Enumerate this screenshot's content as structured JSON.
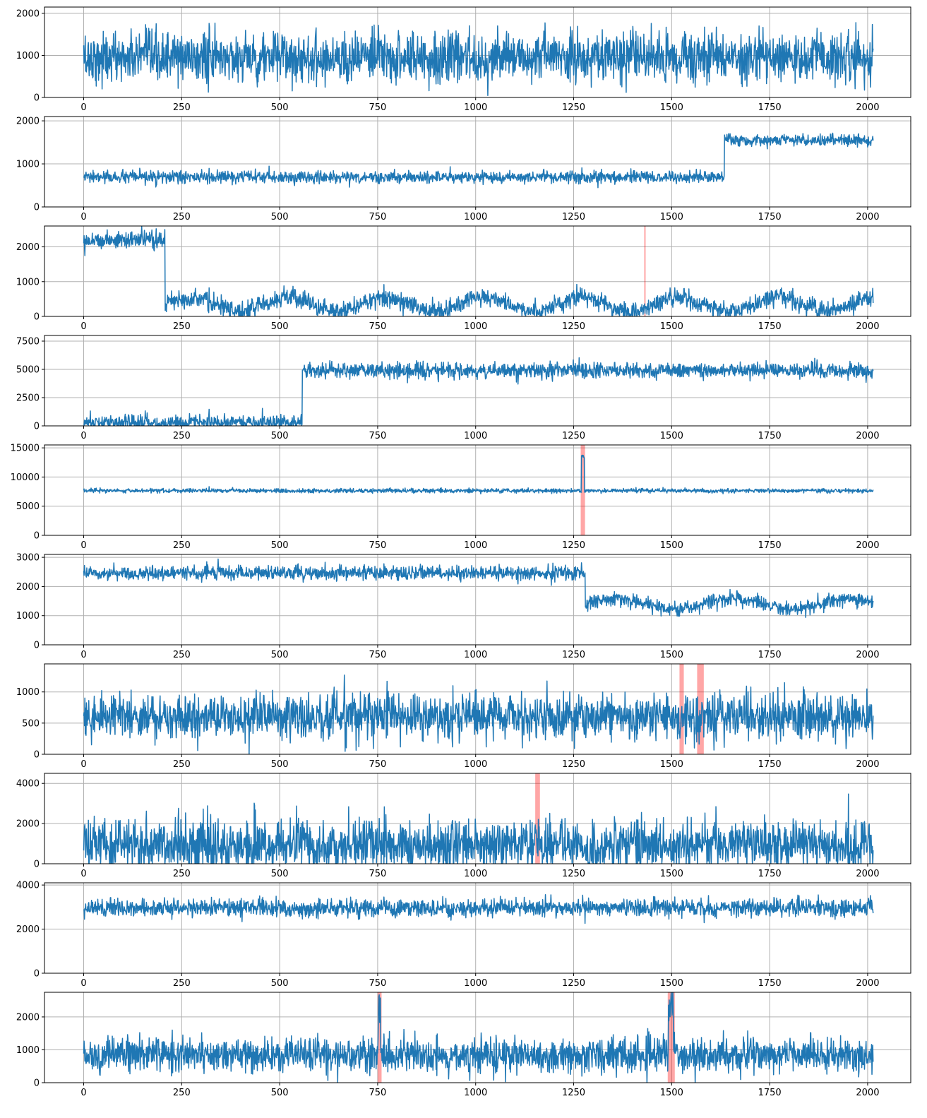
{
  "colors": {
    "series": "#1f77b4",
    "highlight": "#ff0000",
    "grid": "#b0b0b0"
  },
  "chart_data": [
    {
      "type": "line",
      "xlim": [
        -100,
        2110
      ],
      "ylim": [
        0,
        2150
      ],
      "xticks": [
        0,
        250,
        500,
        750,
        1000,
        1250,
        1500,
        1750,
        2000
      ],
      "yticks": [
        0,
        1000,
        2000
      ],
      "highlights": [],
      "series": [
        {
          "n": 2015,
          "mean": 950,
          "noise": 300,
          "segments": []
        }
      ],
      "grid": true
    },
    {
      "type": "line",
      "xlim": [
        -100,
        2110
      ],
      "ylim": [
        0,
        2100
      ],
      "xticks": [
        0,
        250,
        500,
        750,
        1000,
        1250,
        1500,
        1750,
        2000
      ],
      "yticks": [
        0,
        1000,
        2000
      ],
      "highlights": [],
      "series": [
        {
          "n": 2015,
          "noise": 70,
          "segments": [
            [
              0,
              1635,
              690
            ],
            [
              1635,
              2015,
              1550
            ]
          ]
        }
      ],
      "grid": true
    },
    {
      "type": "line",
      "xlim": [
        -100,
        2110
      ],
      "ylim": [
        0,
        2600
      ],
      "xticks": [
        0,
        250,
        500,
        750,
        1000,
        1250,
        1500,
        1750,
        2000
      ],
      "yticks": [
        0,
        1000,
        2000
      ],
      "highlights": [
        [
          1430,
          1432
        ]
      ],
      "series": [
        {
          "n": 2015,
          "noise": 130,
          "segments": [
            [
              0,
              208,
              2200
            ],
            [
              208,
              2015,
              350
            ]
          ],
          "wave": {
            "amp": 200,
            "period": 250,
            "from": 208
          }
        }
      ],
      "grid": true
    },
    {
      "type": "line",
      "xlim": [
        -100,
        2110
      ],
      "ylim": [
        0,
        8000
      ],
      "xticks": [
        0,
        250,
        500,
        750,
        1000,
        1250,
        1500,
        1750,
        2000
      ],
      "yticks": [
        0,
        2500,
        5000,
        7500
      ],
      "highlights": [],
      "series": [
        {
          "n": 2015,
          "noise": 350,
          "segments": [
            [
              0,
              558,
              300
            ],
            [
              558,
              2015,
              4900
            ]
          ]
        }
      ],
      "grid": true
    },
    {
      "type": "line",
      "xlim": [
        -100,
        2110
      ],
      "ylim": [
        0,
        15500
      ],
      "xticks": [
        0,
        250,
        500,
        750,
        1000,
        1250,
        1500,
        1750,
        2000
      ],
      "yticks": [
        0,
        5000,
        10000,
        15000
      ],
      "highlights": [
        [
          1268,
          1279
        ]
      ],
      "series": [
        {
          "n": 2015,
          "noise": 180,
          "segments": [
            [
              0,
              1270,
              7650
            ],
            [
              1270,
              1278,
              13500
            ],
            [
              1278,
              2015,
              7650
            ]
          ]
        }
      ],
      "grid": true
    },
    {
      "type": "line",
      "xlim": [
        -100,
        2110
      ],
      "ylim": [
        0,
        3100
      ],
      "xticks": [
        0,
        250,
        500,
        750,
        1000,
        1250,
        1500,
        1750,
        2000
      ],
      "yticks": [
        0,
        1000,
        2000,
        3000
      ],
      "highlights": [],
      "series": [
        {
          "n": 2015,
          "noise": 120,
          "segments": [
            [
              0,
              1280,
              2460
            ],
            [
              1280,
              2015,
              1400
            ]
          ],
          "wave": {
            "amp": 180,
            "period": 300,
            "from": 1280
          }
        }
      ],
      "grid": true
    },
    {
      "type": "line",
      "xlim": [
        -100,
        2110
      ],
      "ylim": [
        0,
        1450
      ],
      "xticks": [
        0,
        250,
        500,
        750,
        1000,
        1250,
        1500,
        1750,
        2000
      ],
      "yticks": [
        0,
        500,
        1000
      ],
      "highlights": [
        [
          1520,
          1531
        ],
        [
          1565,
          1582
        ]
      ],
      "series": [
        {
          "n": 2015,
          "mean": 600,
          "noise": 180,
          "segments": []
        }
      ],
      "grid": true
    },
    {
      "type": "line",
      "xlim": [
        -100,
        2110
      ],
      "ylim": [
        0,
        4500
      ],
      "xticks": [
        0,
        250,
        500,
        750,
        1000,
        1250,
        1500,
        1750,
        2000
      ],
      "yticks": [
        0,
        2000,
        4000
      ],
      "highlights": [
        [
          1152,
          1164
        ]
      ],
      "series": [
        {
          "n": 2015,
          "mean": 950,
          "noise": 650,
          "segments": []
        }
      ],
      "grid": true
    },
    {
      "type": "line",
      "xlim": [
        -100,
        2110
      ],
      "ylim": [
        0,
        4100
      ],
      "xticks": [
        0,
        250,
        500,
        750,
        1000,
        1250,
        1500,
        1750,
        2000
      ],
      "yticks": [
        0,
        2000,
        4000
      ],
      "highlights": [],
      "series": [
        {
          "n": 2015,
          "mean": 2950,
          "noise": 200,
          "segments": []
        }
      ],
      "grid": true
    },
    {
      "type": "line",
      "xlim": [
        -100,
        2110
      ],
      "ylim": [
        0,
        2750
      ],
      "xticks": [
        0,
        250,
        500,
        750,
        1000,
        1250,
        1500,
        1750,
        2000
      ],
      "yticks": [
        0,
        1000,
        2000
      ],
      "highlights": [
        [
          750,
          760
        ],
        [
          1490,
          1508
        ]
      ],
      "series": [
        {
          "n": 2015,
          "mean": 850,
          "noise": 260,
          "segments": [],
          "spikes": [
            [
              752,
              758,
              2100
            ],
            [
              1492,
              1505,
              2100
            ]
          ]
        }
      ],
      "grid": true
    }
  ]
}
